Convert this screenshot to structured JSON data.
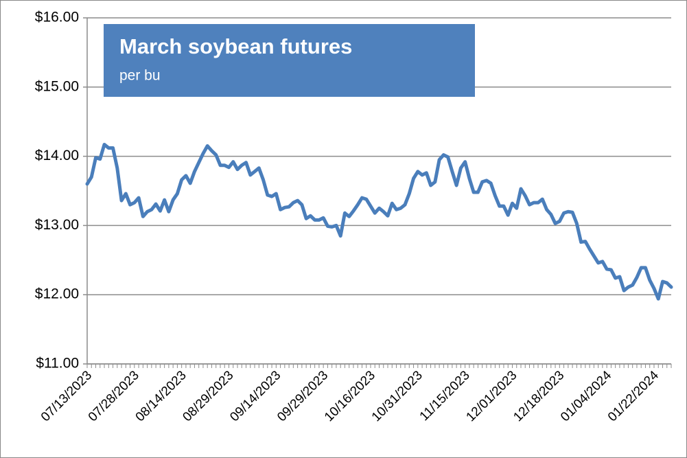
{
  "chart_data": {
    "type": "line",
    "title": "March soybean futures",
    "subtitle": "per bu",
    "categories": [
      "07/13/2023",
      null,
      null,
      null,
      null,
      null,
      null,
      null,
      null,
      null,
      null,
      "07/28/2023",
      null,
      null,
      null,
      null,
      null,
      null,
      null,
      null,
      null,
      null,
      "08/14/2023",
      null,
      null,
      null,
      null,
      null,
      null,
      null,
      null,
      null,
      null,
      "08/29/2023",
      null,
      null,
      null,
      null,
      null,
      null,
      null,
      null,
      null,
      null,
      "09/14/2023",
      null,
      null,
      null,
      null,
      null,
      null,
      null,
      null,
      null,
      null,
      "09/29/2023",
      null,
      null,
      null,
      null,
      null,
      null,
      null,
      null,
      null,
      null,
      "10/16/2023",
      null,
      null,
      null,
      null,
      null,
      null,
      null,
      null,
      null,
      null,
      "10/31/2023",
      null,
      null,
      null,
      null,
      null,
      null,
      null,
      null,
      null,
      null,
      "11/15/2023",
      null,
      null,
      null,
      null,
      null,
      null,
      null,
      null,
      null,
      null,
      "12/01/2023",
      null,
      null,
      null,
      null,
      null,
      null,
      null,
      null,
      null,
      null,
      "12/18/2023",
      null,
      null,
      null,
      null,
      null,
      null,
      null,
      null,
      null,
      null,
      "01/04/2024",
      null,
      null,
      null,
      null,
      null,
      null,
      null,
      null,
      null,
      null,
      "01/22/2024",
      null,
      null,
      null,
      null
    ],
    "series": [
      {
        "name": "March soybean futures",
        "color": "#4a7ebb",
        "values": [
          13.6,
          13.7,
          13.98,
          13.96,
          14.17,
          14.12,
          14.12,
          13.83,
          13.36,
          13.46,
          13.3,
          13.33,
          13.4,
          13.13,
          13.2,
          13.23,
          13.31,
          13.21,
          13.37,
          13.2,
          13.37,
          13.46,
          13.66,
          13.72,
          13.61,
          13.78,
          13.91,
          14.04,
          14.15,
          14.08,
          14.02,
          13.87,
          13.87,
          13.84,
          13.92,
          13.81,
          13.87,
          13.91,
          13.73,
          13.78,
          13.83,
          13.66,
          13.44,
          13.42,
          13.46,
          13.23,
          13.26,
          13.27,
          13.33,
          13.36,
          13.3,
          13.1,
          13.14,
          13.08,
          13.08,
          13.11,
          12.99,
          12.98,
          13.0,
          12.85,
          13.18,
          13.13,
          13.21,
          13.3,
          13.4,
          13.38,
          13.28,
          13.18,
          13.25,
          13.2,
          13.14,
          13.32,
          13.23,
          13.25,
          13.3,
          13.46,
          13.68,
          13.78,
          13.73,
          13.76,
          13.58,
          13.63,
          13.95,
          14.02,
          13.99,
          13.78,
          13.58,
          13.83,
          13.92,
          13.68,
          13.48,
          13.48,
          13.63,
          13.65,
          13.61,
          13.43,
          13.28,
          13.28,
          13.15,
          13.32,
          13.25,
          13.53,
          13.43,
          13.3,
          13.33,
          13.33,
          13.38,
          13.23,
          13.16,
          13.03,
          13.06,
          13.18,
          13.2,
          13.19,
          13.03,
          12.76,
          12.77,
          12.66,
          12.56,
          12.46,
          12.48,
          12.37,
          12.36,
          12.24,
          12.26,
          12.06,
          12.11,
          12.14,
          12.25,
          12.39,
          12.39,
          12.21,
          12.09,
          11.94,
          12.19,
          12.17,
          12.11
        ]
      }
    ],
    "ylim": [
      11,
      16
    ],
    "yticks": [
      {
        "value": 11,
        "label": "$11.00"
      },
      {
        "value": 12,
        "label": "$12.00"
      },
      {
        "value": 13,
        "label": "$13.00"
      },
      {
        "value": 14,
        "label": "$14.00"
      },
      {
        "value": 15,
        "label": "$15.00"
      },
      {
        "value": 16,
        "label": "$16.00"
      }
    ],
    "grid": true
  }
}
